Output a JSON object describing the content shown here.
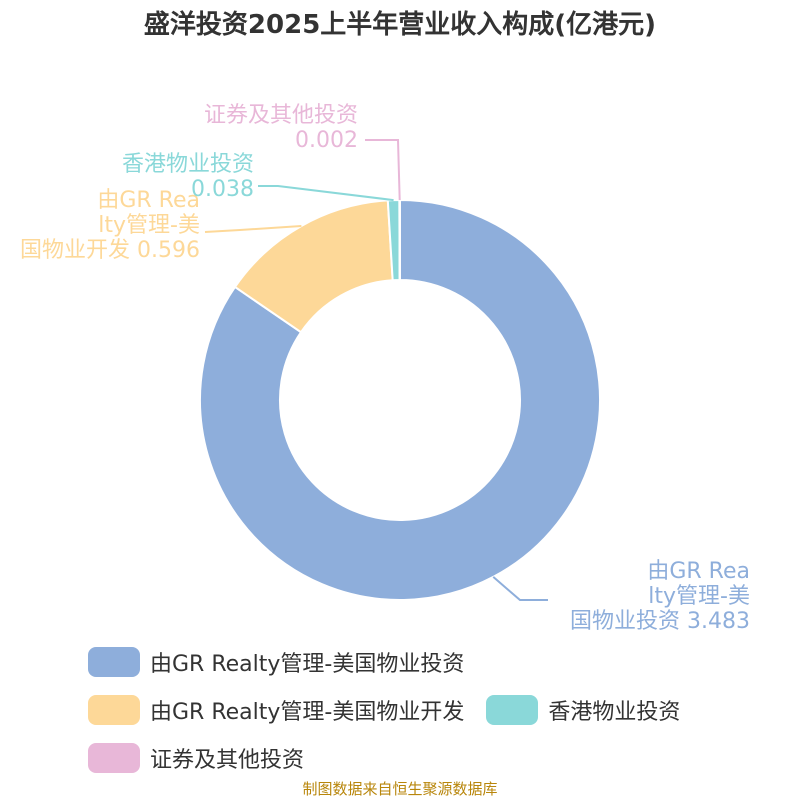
{
  "title": "盛洋投资2025上半年营业收入构成(亿港元)",
  "source": "制图数据来自恒生聚源数据库",
  "chart_data": {
    "type": "pie",
    "donut": true,
    "title": "盛洋投资2025上半年营业收入构成(亿港元)",
    "series": [
      {
        "name": "由GR Realty管理-美国物业投资",
        "value": 3.483,
        "label_lines": [
          "由GR Rea",
          "lty管理-美",
          "国物业投资 3.483"
        ],
        "color": "#8eaedb"
      },
      {
        "name": "由GR Realty管理-美国物业开发",
        "value": 0.596,
        "label_lines": [
          "由GR Rea",
          "lty管理-美",
          "国物业开发 0.596"
        ],
        "color": "#fdd898"
      },
      {
        "name": "香港物业投资",
        "value": 0.038,
        "label_lines": [
          "香港物业投资",
          "0.038"
        ],
        "color": "#8ad8d9"
      },
      {
        "name": "证券及其他投资",
        "value": 0.002,
        "label_lines": [
          "证券及其他投资",
          "0.002"
        ],
        "color": "#e8b7d8"
      }
    ],
    "legend_position": "bottom"
  }
}
